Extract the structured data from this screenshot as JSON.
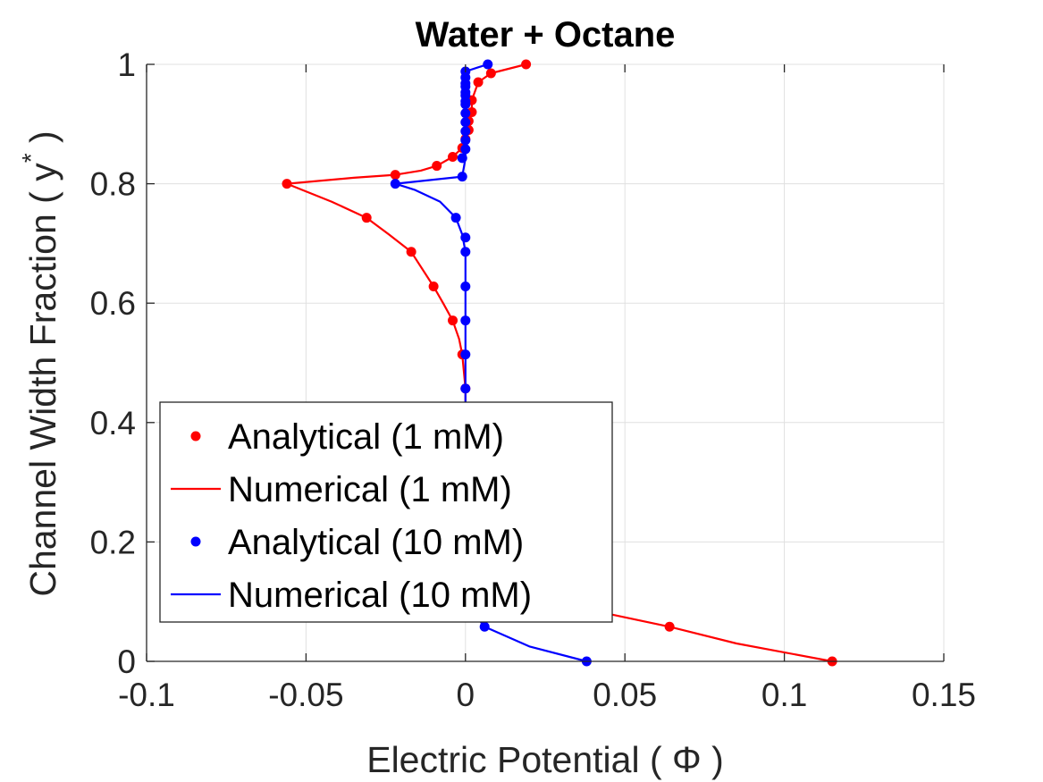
{
  "chart_data": {
    "type": "line",
    "title": "Water + Octane",
    "xlabel": "Electric Potential  ( Φ )",
    "ylabel": "Channel Width Fraction ( y* )",
    "ylabel_main": "Channel Width Fraction ( y",
    "ylabel_sup": "*",
    "ylabel_tail": " )",
    "xlim": [
      -0.1,
      0.15
    ],
    "ylim": [
      0,
      1
    ],
    "xticks": [
      -0.1,
      -0.05,
      0,
      0.05,
      0.1,
      0.15
    ],
    "xtick_labels": [
      "-0.1",
      "-0.05",
      "0",
      "0.05",
      "0.1",
      "0.15"
    ],
    "yticks": [
      0,
      0.2,
      0.4,
      0.6,
      0.8,
      1
    ],
    "ytick_labels": [
      "0",
      "0.2",
      "0.4",
      "0.6",
      "0.8",
      "1"
    ],
    "grid": true,
    "legend_position": "lower-left",
    "series": [
      {
        "name": "Analytical (1 mM)",
        "style": "markers",
        "color": "#ff0000",
        "x": [
          0.115,
          0.064,
          0.019,
          0.008,
          0.004,
          0.001,
          0.0,
          -0.001,
          -0.004,
          -0.01,
          -0.017,
          -0.031,
          -0.056,
          -0.022,
          -0.009,
          -0.004,
          -0.001,
          0.0,
          0.001,
          0.001,
          0.002,
          0.002,
          0.004,
          0.008,
          0.019
        ],
        "y": [
          0.0,
          0.058,
          0.115,
          0.172,
          0.229,
          0.286,
          0.457,
          0.514,
          0.571,
          0.628,
          0.686,
          0.743,
          0.8,
          0.815,
          0.83,
          0.845,
          0.86,
          0.875,
          0.89,
          0.905,
          0.92,
          0.94,
          0.97,
          0.985,
          1.0
        ]
      },
      {
        "name": "Numerical (1 mM)",
        "style": "line",
        "color": "#ff0000",
        "x": [
          0.115,
          0.085,
          0.064,
          0.04,
          0.019,
          0.008,
          0.004,
          0.001,
          0.0,
          0.0,
          -0.001,
          -0.002,
          -0.004,
          -0.007,
          -0.01,
          -0.017,
          -0.024,
          -0.031,
          -0.042,
          -0.056,
          -0.035,
          -0.022,
          -0.014,
          -0.009,
          -0.004,
          -0.001,
          0.0,
          0.001,
          0.001,
          0.002,
          0.002,
          0.003,
          0.004,
          0.008,
          0.019
        ],
        "y": [
          0.0,
          0.03,
          0.058,
          0.085,
          0.115,
          0.172,
          0.229,
          0.286,
          0.4,
          0.457,
          0.514,
          0.54,
          0.571,
          0.6,
          0.628,
          0.686,
          0.715,
          0.743,
          0.77,
          0.8,
          0.81,
          0.815,
          0.822,
          0.83,
          0.845,
          0.86,
          0.875,
          0.89,
          0.905,
          0.92,
          0.94,
          0.955,
          0.97,
          0.985,
          1.0
        ]
      },
      {
        "name": "Analytical (10 mM)",
        "style": "markers",
        "color": "#0000ff",
        "x": [
          0.038,
          0.006,
          0.001,
          0.0,
          0.0,
          0.0,
          0.0,
          0.0,
          0.0,
          -0.003,
          -0.022,
          -0.001,
          -0.001,
          0.0,
          0.0,
          0.0,
          0.0,
          0.0,
          0.0,
          0.0,
          0.0,
          0.0,
          0.0,
          0.0,
          0.0,
          0.0,
          0.007
        ],
        "y": [
          0.0,
          0.058,
          0.115,
          0.457,
          0.514,
          0.571,
          0.628,
          0.686,
          0.71,
          0.743,
          0.8,
          0.812,
          0.843,
          0.858,
          0.873,
          0.888,
          0.903,
          0.918,
          0.933,
          0.948,
          0.963,
          0.978,
          0.988,
          0.968,
          0.953,
          0.938,
          1.0
        ]
      },
      {
        "name": "Numerical (10 mM)",
        "style": "line",
        "color": "#0000ff",
        "x": [
          0.038,
          0.02,
          0.006,
          0.002,
          0.001,
          0.0,
          0.0,
          0.0,
          0.0,
          0.0,
          -0.001,
          -0.003,
          -0.008,
          -0.016,
          -0.022,
          -0.001,
          0.0,
          0.0,
          0.0,
          0.0,
          0.0,
          0.0,
          0.0,
          0.0,
          0.004,
          0.007
        ],
        "y": [
          0.0,
          0.025,
          0.058,
          0.085,
          0.115,
          0.3,
          0.457,
          0.571,
          0.628,
          0.686,
          0.715,
          0.743,
          0.77,
          0.79,
          0.8,
          0.812,
          0.843,
          0.873,
          0.903,
          0.933,
          0.963,
          0.978,
          0.985,
          0.988,
          0.995,
          1.0
        ]
      }
    ]
  }
}
